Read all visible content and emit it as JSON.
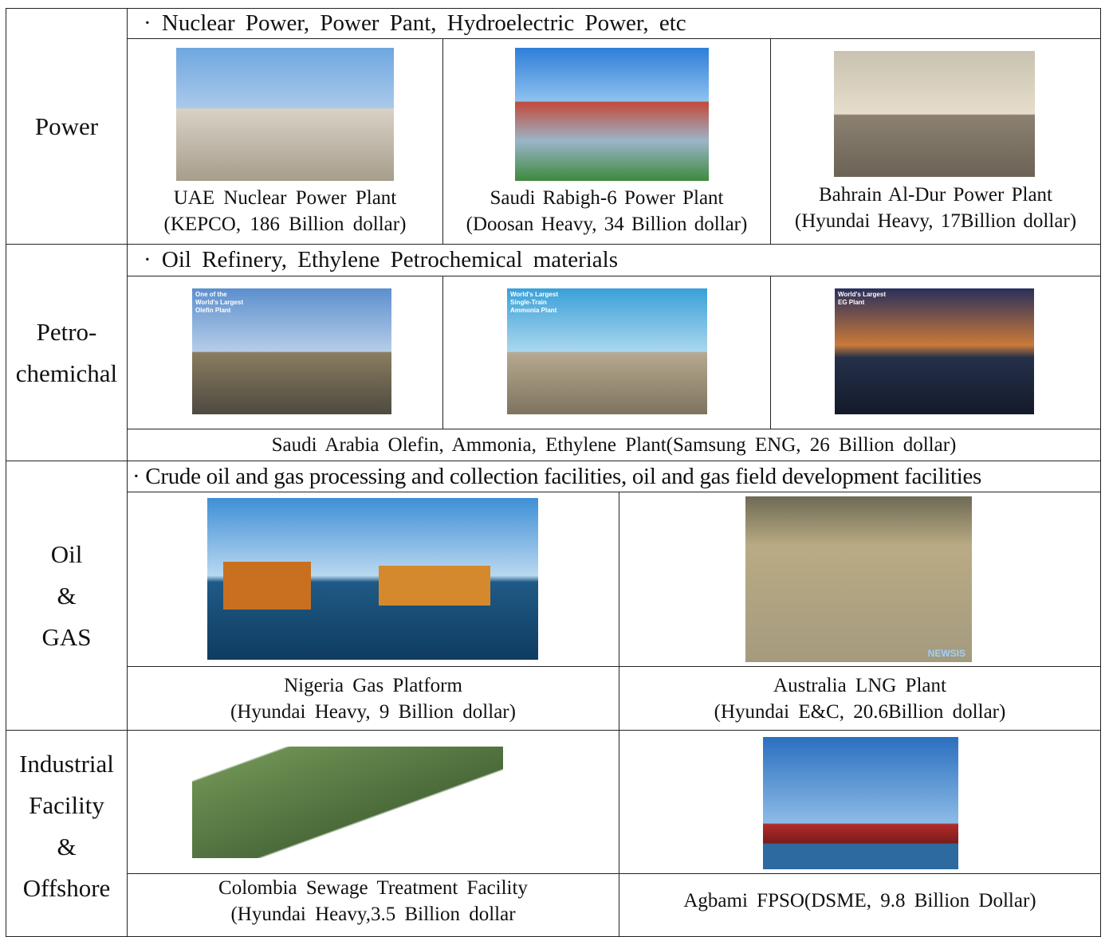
{
  "sections": [
    {
      "label_lines": [
        "Power"
      ],
      "header": "· Nuclear Power, Power Pant, Hydroelectric Power, etc",
      "items": [
        {
          "caption_lines": [
            "UAE Nuclear Power Plant",
            "(KEPCO, 186 Billion dollar)"
          ]
        },
        {
          "caption_lines": [
            "Saudi Rabigh-6 Power Plant",
            "(Doosan Heavy, 34 Billion dollar)"
          ]
        },
        {
          "caption_lines": [
            "Bahrain Al-Dur Power Plant",
            "(Hyundai Heavy, 17Billion dollar)"
          ]
        }
      ]
    },
    {
      "label_lines": [
        "Petro-",
        "chemichal"
      ],
      "header": "· Oil Refinery, Ethylene Petrochemical materials",
      "items": [
        {
          "image_text": "One of the World's Largest Olefin Plant"
        },
        {
          "image_text": "World's Largest Single-Train Ammonia Plant"
        },
        {
          "image_text": "World's Largest EG Plant"
        }
      ],
      "caption": "Saudi Arabia Olefin, Ammonia, Ethylene Plant(Samsung ENG, 26 Billion dollar)"
    },
    {
      "label_lines": [
        "Oil",
        "&",
        "GAS"
      ],
      "header": "· Crude oil and gas processing and collection facilities, oil and gas field development facilities",
      "items": [
        {
          "caption_lines": [
            "Nigeria Gas Platform",
            "(Hyundai Heavy, 9 Billion dollar)"
          ]
        },
        {
          "image_text": "NEWSIS",
          "caption_lines": [
            "Australia LNG Plant",
            "(Hyundai E&C, 20.6Billion dollar)"
          ]
        }
      ]
    },
    {
      "label_lines": [
        "Industrial",
        "Facility",
        "&",
        "Offshore"
      ],
      "items": [
        {
          "caption_lines": [
            "Colombia Sewage Treatment Facility",
            "(Hyundai Heavy,3.5 Billion dollar"
          ]
        },
        {
          "caption_lines": [
            "Agbami FPSO(DSME, 9.8 Billion Dollar)"
          ]
        }
      ]
    }
  ]
}
